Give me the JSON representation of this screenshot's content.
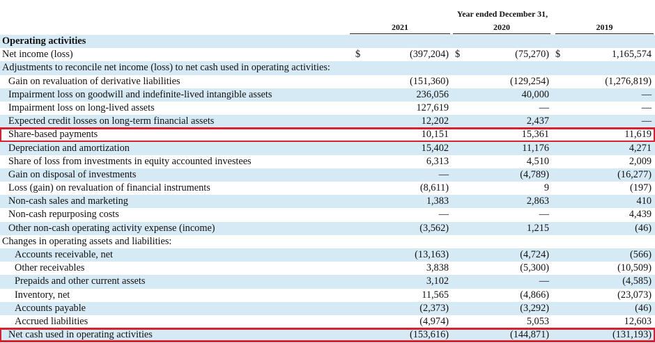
{
  "header": {
    "period": "Year ended December 31,",
    "years": [
      "2021",
      "2020",
      "2019"
    ]
  },
  "rows": [
    {
      "label": "Operating activities",
      "values": [
        "",
        "",
        ""
      ],
      "bold": true,
      "shade": true
    },
    {
      "label": "Net income (loss)",
      "values": [
        "(397,204)",
        "(75,270)",
        "1,165,574"
      ],
      "currency": [
        "$",
        "$",
        "$"
      ]
    },
    {
      "label": "Adjustments to reconcile net income (loss) to net cash used in operating activities:",
      "values": [
        "",
        "",
        ""
      ],
      "shade": true
    },
    {
      "label": "Gain on revaluation of derivative liabilities",
      "values": [
        "(151,360)",
        "(129,254)",
        "(1,276,819)"
      ],
      "indent": 1
    },
    {
      "label": "Impairment loss on goodwill and indefinite-lived intangible assets",
      "values": [
        "236,056",
        "40,000",
        "—"
      ],
      "indent": 1,
      "shade": true
    },
    {
      "label": "Impairment loss on long-lived assets",
      "values": [
        "127,619",
        "—",
        "—"
      ],
      "indent": 1
    },
    {
      "label": "Expected credit losses on long-term financial assets",
      "values": [
        "12,202",
        "2,437",
        "—"
      ],
      "indent": 1,
      "shade": true
    },
    {
      "label": "Share-based payments",
      "values": [
        "10,151",
        "15,361",
        "11,619"
      ],
      "indent": 1,
      "boxed": true
    },
    {
      "label": "Depreciation and amortization",
      "values": [
        "15,402",
        "11,176",
        "4,271"
      ],
      "indent": 1,
      "shade": true
    },
    {
      "label": "Share of loss from investments in equity accounted investees",
      "values": [
        "6,313",
        "4,510",
        "2,009"
      ],
      "indent": 1
    },
    {
      "label": "Gain on disposal of investments",
      "values": [
        "—",
        "(4,789)",
        "(16,277)"
      ],
      "indent": 1,
      "shade": true
    },
    {
      "label": "Loss (gain) on revaluation of financial instruments",
      "values": [
        "(8,611)",
        "9",
        "(197)"
      ],
      "indent": 1
    },
    {
      "label": "Non-cash sales and marketing",
      "values": [
        "1,383",
        "2,863",
        "410"
      ],
      "indent": 1,
      "shade": true
    },
    {
      "label": "Non-cash repurposing costs",
      "values": [
        "—",
        "—",
        "4,439"
      ],
      "indent": 1
    },
    {
      "label": "Other non-cash operating activity expense (income)",
      "values": [
        "(3,562)",
        "1,215",
        "(46)"
      ],
      "indent": 1,
      "shade": true
    },
    {
      "label": "Changes in operating assets and liabilities:",
      "values": [
        "",
        "",
        ""
      ]
    },
    {
      "label": "Accounts receivable, net",
      "values": [
        "(13,163)",
        "(4,724)",
        "(566)"
      ],
      "indent": 2,
      "shade": true
    },
    {
      "label": "Other receivables",
      "values": [
        "3,838",
        "(5,300)",
        "(10,509)"
      ],
      "indent": 2
    },
    {
      "label": "Prepaids and other current assets",
      "values": [
        "3,102",
        "—",
        "(4,585)"
      ],
      "indent": 2,
      "shade": true
    },
    {
      "label": "Inventory, net",
      "values": [
        "11,565",
        "(4,866)",
        "(23,073)"
      ],
      "indent": 2
    },
    {
      "label": "Accounts payable",
      "values": [
        "(2,373)",
        "(3,292)",
        "(46)"
      ],
      "indent": 2,
      "shade": true
    },
    {
      "label": "Accrued liabilities",
      "values": [
        "(4,974)",
        "5,053",
        "12,603"
      ],
      "indent": 2
    },
    {
      "label": "Net cash used in operating activities",
      "values": [
        "(153,616)",
        "(144,871)",
        "(131,193)"
      ],
      "indent": 1,
      "shade": true,
      "boxed": true
    }
  ]
}
